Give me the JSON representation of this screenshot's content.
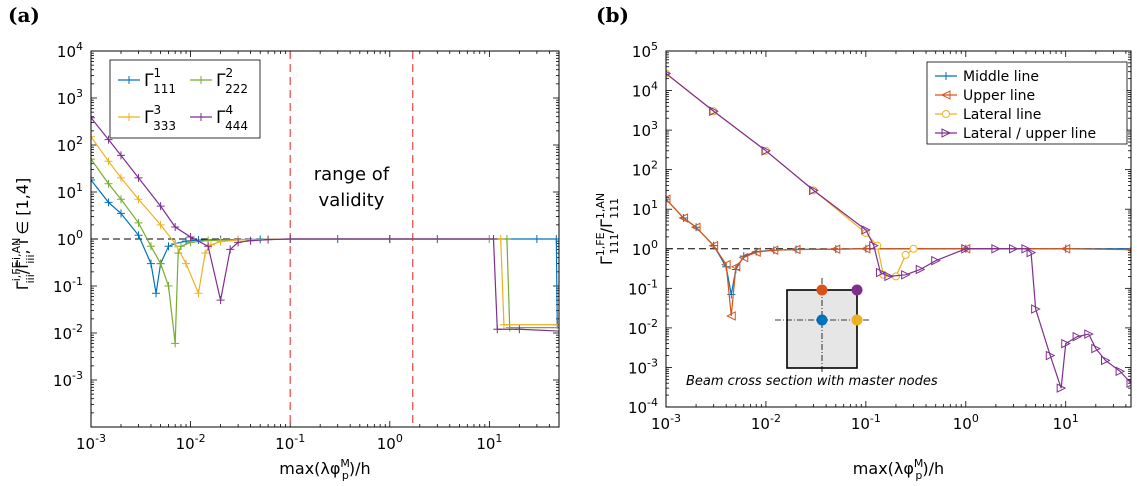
{
  "chart_data": [
    {
      "panel_label": "(a)",
      "type": "line",
      "xscale": "log",
      "yscale": "log",
      "xlim": [
        0.001,
        50
      ],
      "ylim": [
        0.0001,
        10000
      ],
      "xticks": [
        {
          "v": 0.001,
          "base": "10",
          "exp": "-3"
        },
        {
          "v": 0.01,
          "base": "10",
          "exp": "-2"
        },
        {
          "v": 0.1,
          "base": "10",
          "exp": "-1"
        },
        {
          "v": 1,
          "base": "10",
          "exp": "0"
        },
        {
          "v": 10,
          "base": "10",
          "exp": "1"
        }
      ],
      "yticks": [
        {
          "v": 0.001,
          "base": "10",
          "exp": "-3"
        },
        {
          "v": 0.01,
          "base": "10",
          "exp": "-2"
        },
        {
          "v": 0.1,
          "base": "10",
          "exp": "-1"
        },
        {
          "v": 1,
          "base": "10",
          "exp": "0"
        },
        {
          "v": 10,
          "base": "10",
          "exp": "1"
        },
        {
          "v": 100,
          "base": "10",
          "exp": "2"
        },
        {
          "v": 1000,
          "base": "10",
          "exp": "3"
        },
        {
          "v": 10000,
          "base": "10",
          "exp": "4"
        }
      ],
      "xlabel": {
        "pre": "max(λφ",
        "sup": "M",
        "sub": "p",
        "post": ")/h"
      },
      "ylabel": {
        "g1": "Γ",
        "g1sup": "i,FE",
        "g1sub": "iii",
        "slash": "/Γ",
        "g2sup": "i,AN",
        "g2sub": "iii",
        "tail": ", i ∈ [1,4]"
      },
      "reference_line": 1,
      "vlines": [
        0.1,
        1.7
      ],
      "annotation": [
        "range of",
        "validity"
      ],
      "grid": false,
      "legend_position": "top-left",
      "series": [
        {
          "name": "Γ",
          "sup": "1",
          "sub": "111",
          "color": "#0072BD",
          "marker": "plus",
          "x": [
            0.001,
            0.0015,
            0.002,
            0.003,
            0.004,
            0.0045,
            0.005,
            0.006,
            0.007,
            0.009,
            0.012,
            0.02,
            0.05,
            0.1,
            0.3,
            1,
            3,
            10,
            30,
            47,
            48,
            50
          ],
          "y": [
            18,
            6,
            3.5,
            1.2,
            0.3,
            0.07,
            0.3,
            0.7,
            0.8,
            0.9,
            0.95,
            0.97,
            0.98,
            1,
            1,
            1,
            1,
            1,
            1,
            1,
            0.015,
            0.015
          ]
        },
        {
          "name": "Γ",
          "sup": "2",
          "sub": "222",
          "color": "#77AC30",
          "marker": "plus",
          "x": [
            0.001,
            0.0015,
            0.002,
            0.003,
            0.004,
            0.005,
            0.006,
            0.007,
            0.0075,
            0.008,
            0.01,
            0.015,
            0.03,
            0.1,
            1,
            10,
            15,
            16,
            50
          ],
          "y": [
            50,
            15,
            7,
            2.2,
            0.7,
            0.3,
            0.1,
            0.006,
            0.5,
            0.7,
            0.85,
            0.93,
            0.97,
            1,
            1,
            1,
            1,
            0.013,
            0.013
          ]
        },
        {
          "name": "Γ",
          "sup": "3",
          "sub": "333",
          "color": "#EDB120",
          "marker": "plus",
          "x": [
            0.001,
            0.0015,
            0.002,
            0.003,
            0.005,
            0.007,
            0.009,
            0.012,
            0.014,
            0.016,
            0.02,
            0.03,
            0.1,
            1,
            10,
            13,
            14,
            50
          ],
          "y": [
            150,
            45,
            20,
            7,
            2,
            0.8,
            0.3,
            0.07,
            0.5,
            0.75,
            0.88,
            0.95,
            1,
            1,
            1,
            1,
            0.015,
            0.015
          ]
        },
        {
          "name": "Γ",
          "sup": "4",
          "sub": "444",
          "color": "#7E2F8E",
          "marker": "plus",
          "x": [
            0.001,
            0.0015,
            0.002,
            0.003,
            0.005,
            0.007,
            0.01,
            0.015,
            0.02,
            0.025,
            0.03,
            0.04,
            0.06,
            0.1,
            1,
            11,
            12,
            20,
            50
          ],
          "y": [
            380,
            130,
            60,
            20,
            5,
            1.8,
            1.1,
            0.7,
            0.05,
            0.6,
            0.85,
            0.92,
            0.97,
            1,
            1,
            1,
            0.012,
            0.012,
            0.011
          ]
        }
      ]
    },
    {
      "panel_label": "(b)",
      "type": "line",
      "xscale": "log",
      "yscale": "log",
      "xlim": [
        0.001,
        45
      ],
      "ylim": [
        0.0001,
        100000
      ],
      "xticks": [
        {
          "v": 0.001,
          "base": "10",
          "exp": "-3"
        },
        {
          "v": 0.01,
          "base": "10",
          "exp": "-2"
        },
        {
          "v": 0.1,
          "base": "10",
          "exp": "-1"
        },
        {
          "v": 1,
          "base": "10",
          "exp": "0"
        },
        {
          "v": 10,
          "base": "10",
          "exp": "1"
        }
      ],
      "yticks": [
        {
          "v": 0.0001,
          "base": "10",
          "exp": "-4"
        },
        {
          "v": 0.001,
          "base": "10",
          "exp": "-3"
        },
        {
          "v": 0.01,
          "base": "10",
          "exp": "-2"
        },
        {
          "v": 0.1,
          "base": "10",
          "exp": "-1"
        },
        {
          "v": 1,
          "base": "10",
          "exp": "0"
        },
        {
          "v": 10,
          "base": "10",
          "exp": "1"
        },
        {
          "v": 100,
          "base": "10",
          "exp": "2"
        },
        {
          "v": 1000,
          "base": "10",
          "exp": "3"
        },
        {
          "v": 10000,
          "base": "10",
          "exp": "4"
        },
        {
          "v": 100000,
          "base": "10",
          "exp": "5"
        }
      ],
      "xlabel": {
        "pre": "max(λφ",
        "sup": "M",
        "sub": "p",
        "post": ")/h"
      },
      "ylabel": {
        "g1": "Γ",
        "g1sup": "1,FE",
        "g1sub": "111",
        "slash": "/Γ",
        "g2sup": "1,AN",
        "g2sub": "111",
        "tail": ""
      },
      "reference_line": 1,
      "grid": false,
      "legend_position": "top-right",
      "inset_caption": "Beam cross section with master nodes",
      "inset_nodes": [
        {
          "pos": "upper",
          "color": "#D95319"
        },
        {
          "pos": "lateral-upper",
          "color": "#7E2F8E"
        },
        {
          "pos": "middle",
          "color": "#0072BD"
        },
        {
          "pos": "lateral",
          "color": "#EDB120"
        }
      ],
      "series": [
        {
          "name": "Middle line",
          "color": "#0072BD",
          "marker": "plus",
          "x": [
            0.001,
            0.0015,
            0.002,
            0.003,
            0.004,
            0.0045,
            0.005,
            0.006,
            0.008,
            0.012,
            0.02,
            0.05,
            0.1,
            1,
            10,
            45
          ],
          "y": [
            18,
            6,
            3.5,
            1.2,
            0.35,
            0.07,
            0.3,
            0.65,
            0.85,
            0.92,
            0.96,
            0.98,
            1,
            1,
            1,
            1
          ]
        },
        {
          "name": "Upper line",
          "color": "#D95319",
          "marker": "triangle-left",
          "x": [
            0.001,
            0.0015,
            0.002,
            0.003,
            0.004,
            0.0045,
            0.005,
            0.006,
            0.008,
            0.012,
            0.02,
            0.05,
            0.1,
            1,
            10,
            45
          ],
          "y": [
            18,
            6,
            3.5,
            1.2,
            0.4,
            0.02,
            0.35,
            0.6,
            0.82,
            0.92,
            0.96,
            0.98,
            1,
            1,
            1,
            0.95
          ]
        },
        {
          "name": "Lateral line",
          "color": "#EDB120",
          "marker": "circle",
          "x": [
            0.001,
            0.003,
            0.01,
            0.03,
            0.1,
            0.13,
            0.15,
            0.2,
            0.25,
            0.3
          ],
          "y": [
            27000,
            3000,
            300,
            30,
            2.5,
            1.2,
            0.22,
            0.2,
            0.7,
            1
          ]
        },
        {
          "name": "Lateral / upper line",
          "color": "#7E2F8E",
          "marker": "triangle-right",
          "x": [
            0.001,
            0.003,
            0.01,
            0.03,
            0.1,
            0.12,
            0.14,
            0.17,
            0.25,
            0.35,
            0.5,
            1,
            2,
            3,
            4,
            4.5,
            5,
            7,
            9,
            10,
            13,
            17,
            20,
            25,
            35,
            45
          ],
          "y": [
            27000,
            3000,
            300,
            30,
            3,
            1.2,
            0.25,
            0.2,
            0.22,
            0.3,
            0.5,
            1,
            1,
            1,
            1,
            0.8,
            0.03,
            0.002,
            0.0003,
            0.004,
            0.006,
            0.007,
            0.003,
            0.0015,
            0.0008,
            0.0004
          ]
        }
      ]
    }
  ]
}
